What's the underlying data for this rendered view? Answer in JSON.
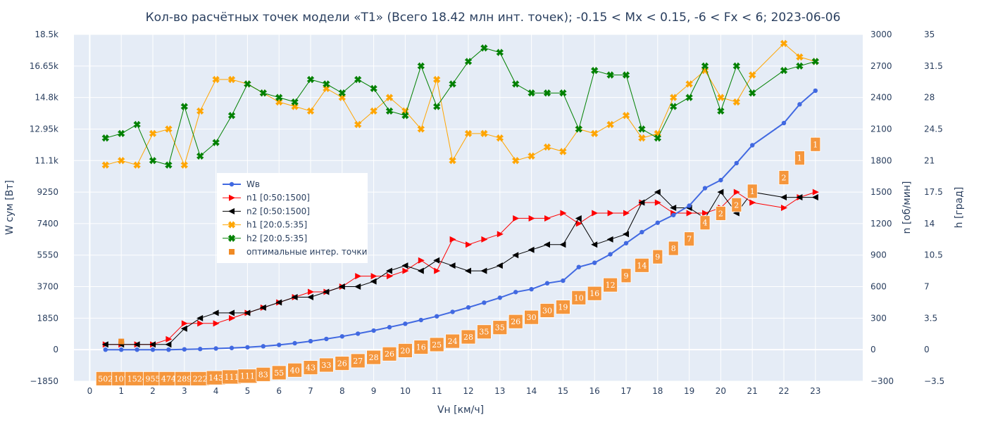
{
  "chart_data": {
    "type": "line",
    "title": "Кол-во расчётных точек модели «T1» (Всего 18.42 млн инт. точек); -0.15 < Mx < 0.15, -6 < Fx < 6; 2023-06-06",
    "xlabel": "Vн [км/ч]",
    "ylabel": "W сум [Вт]",
    "y2label": "n [об/мин]",
    "y3label": "h [град]",
    "xlim": [
      -0.5,
      24.5
    ],
    "ylim": [
      -1850,
      18500
    ],
    "y2lim": [
      -300,
      3000
    ],
    "y3lim": [
      -3.5,
      35
    ],
    "x_ticks": [
      0,
      1,
      2,
      3,
      4,
      5,
      6,
      7,
      8,
      9,
      10,
      11,
      12,
      13,
      14,
      15,
      16,
      17,
      18,
      19,
      20,
      21,
      22,
      23
    ],
    "y_ticks": [
      -1850,
      0,
      1850,
      3700,
      5550,
      7400,
      9250,
      11100,
      12950,
      14800,
      16650,
      18500
    ],
    "y_tick_labels": [
      "−1850",
      "0",
      "1850",
      "3700",
      "5550",
      "7400",
      "9250",
      "11.1k",
      "12.95k",
      "14.8k",
      "16.65k",
      "18.5k"
    ],
    "y2_ticks": [
      -300,
      0,
      300,
      600,
      900,
      1200,
      1500,
      1800,
      2100,
      2400,
      2700,
      3000
    ],
    "y2_tick_labels": [
      "−300",
      "0",
      "300",
      "600",
      "900",
      "1200",
      "1500",
      "1800",
      "2100",
      "2400",
      "2700",
      "3000"
    ],
    "y3_ticks": [
      -3.5,
      0,
      3.5,
      7,
      10.5,
      14,
      17.5,
      21,
      24.5,
      28,
      31.5,
      35
    ],
    "y3_tick_labels": [
      "−3.5",
      "0",
      "3.5",
      "7",
      "10.5",
      "14",
      "17.5",
      "21",
      "24.5",
      "28",
      "31.5",
      "35"
    ],
    "grid": true,
    "legend_position": "center-left",
    "x": [
      0.5,
      1,
      1.5,
      2,
      2.5,
      3,
      3.5,
      4,
      4.5,
      5,
      5.5,
      6,
      6.5,
      7,
      7.5,
      8,
      8.5,
      9,
      9.5,
      10,
      10.5,
      11,
      11.5,
      12,
      12.5,
      13,
      13.5,
      14,
      14.5,
      15,
      15.5,
      16,
      16.5,
      17,
      17.5,
      18,
      18.5,
      19,
      19.5,
      20,
      20.5,
      21,
      22,
      22.5,
      23
    ],
    "series": [
      {
        "name": "Wв",
        "axis": "y",
        "color": "#4169e1",
        "marker": "circle",
        "values": [
          0,
          0,
          0,
          0,
          0,
          20,
          40,
          70,
          100,
          140,
          200,
          280,
          380,
          500,
          630,
          780,
          940,
          1120,
          1320,
          1520,
          1740,
          1960,
          2220,
          2480,
          2760,
          3050,
          3380,
          3550,
          3900,
          4050,
          4850,
          5100,
          5600,
          6250,
          6900,
          7450,
          7900,
          8450,
          9480,
          9950,
          10950,
          12000,
          13300,
          14400,
          15200
        ]
      },
      {
        "name": "n1 [0:50:1500]",
        "axis": "y2",
        "color": "#ff0000",
        "marker": "triangle-right",
        "values": [
          50,
          50,
          50,
          50,
          100,
          250,
          250,
          250,
          300,
          350,
          400,
          450,
          500,
          550,
          550,
          600,
          700,
          700,
          700,
          750,
          850,
          750,
          1050,
          1000,
          1050,
          1100,
          1250,
          1250,
          1250,
          1300,
          1200,
          1300,
          1300,
          1300,
          1400,
          1400,
          1300,
          1300,
          1300,
          1350,
          1500,
          1400,
          1350,
          1450,
          1500
        ]
      },
      {
        "name": "n2 [0:50:1500]",
        "axis": "y2",
        "color": "#000000",
        "marker": "triangle-left",
        "values": [
          50,
          50,
          50,
          50,
          50,
          200,
          300,
          350,
          350,
          350,
          400,
          450,
          500,
          500,
          550,
          600,
          600,
          650,
          750,
          800,
          750,
          850,
          800,
          750,
          750,
          800,
          900,
          950,
          1000,
          1000,
          1250,
          1000,
          1050,
          1100,
          1400,
          1500,
          1350,
          1350,
          1250,
          1500,
          1300,
          1500,
          1450,
          1450,
          1450
        ]
      },
      {
        "name": "h1 [20:0.5:35]",
        "axis": "y3",
        "color": "#ffa500",
        "marker": "x",
        "values": [
          20.5,
          21,
          20.5,
          24,
          24.5,
          20.5,
          26.5,
          30,
          30,
          29.5,
          28.5,
          27.5,
          27,
          26.5,
          29,
          28,
          25,
          26.5,
          28,
          26.5,
          24.5,
          30,
          21,
          24,
          24,
          23.5,
          21,
          21.5,
          22.5,
          22,
          24.5,
          24,
          25,
          26,
          23.5,
          24,
          28,
          29.5,
          31,
          28,
          27.5,
          30.5,
          34,
          32.5,
          32
        ]
      },
      {
        "name": "h2 [20:0.5:35]",
        "axis": "y3",
        "color": "#008000",
        "marker": "x",
        "values": [
          23.5,
          24,
          25,
          21,
          20.5,
          27,
          21.5,
          23,
          26,
          29.5,
          28.5,
          28,
          27.5,
          30,
          29.5,
          28.5,
          30,
          29,
          26.5,
          26,
          31.5,
          27,
          29.5,
          32,
          33.5,
          33,
          29.5,
          28.5,
          28.5,
          28.5,
          24.5,
          31,
          30.5,
          30.5,
          24.5,
          23.5,
          27,
          28,
          31.5,
          26.5,
          31.5,
          28.5,
          31,
          31.5,
          32
        ]
      }
    ],
    "optimal_points": {
      "name": "оптимальные интер. точки",
      "color": "#f08a24",
      "x": [
        1
      ],
      "y": [
        480
      ]
    },
    "box_labels": {
      "texts": [
        "502",
        "107",
        "1524",
        "955",
        "474",
        "289",
        "222",
        "143",
        "111",
        "111",
        "83",
        "55",
        "40",
        "43",
        "33",
        "26",
        "27",
        "28",
        "26",
        "20",
        "16",
        "25",
        "24",
        "28",
        "35",
        "35",
        "26",
        "30",
        "30",
        "19",
        "10",
        "16",
        "12",
        "9",
        "14",
        "9",
        "8",
        "7",
        "4",
        "2",
        "2",
        "1",
        "2",
        "1",
        "1"
      ],
      "y": [
        -1700,
        -1700,
        -1700,
        -1700,
        -1700,
        -1700,
        -1700,
        -1650,
        -1600,
        -1550,
        -1450,
        -1350,
        -1200,
        -1050,
        -900,
        -800,
        -650,
        -450,
        -250,
        -50,
        150,
        300,
        500,
        750,
        1050,
        1300,
        1650,
        1900,
        2300,
        2500,
        3050,
        3300,
        3800,
        4350,
        4950,
        5450,
        5950,
        6500,
        7450,
        8000,
        8500,
        9300,
        10100,
        11250,
        12050
      ]
    }
  }
}
